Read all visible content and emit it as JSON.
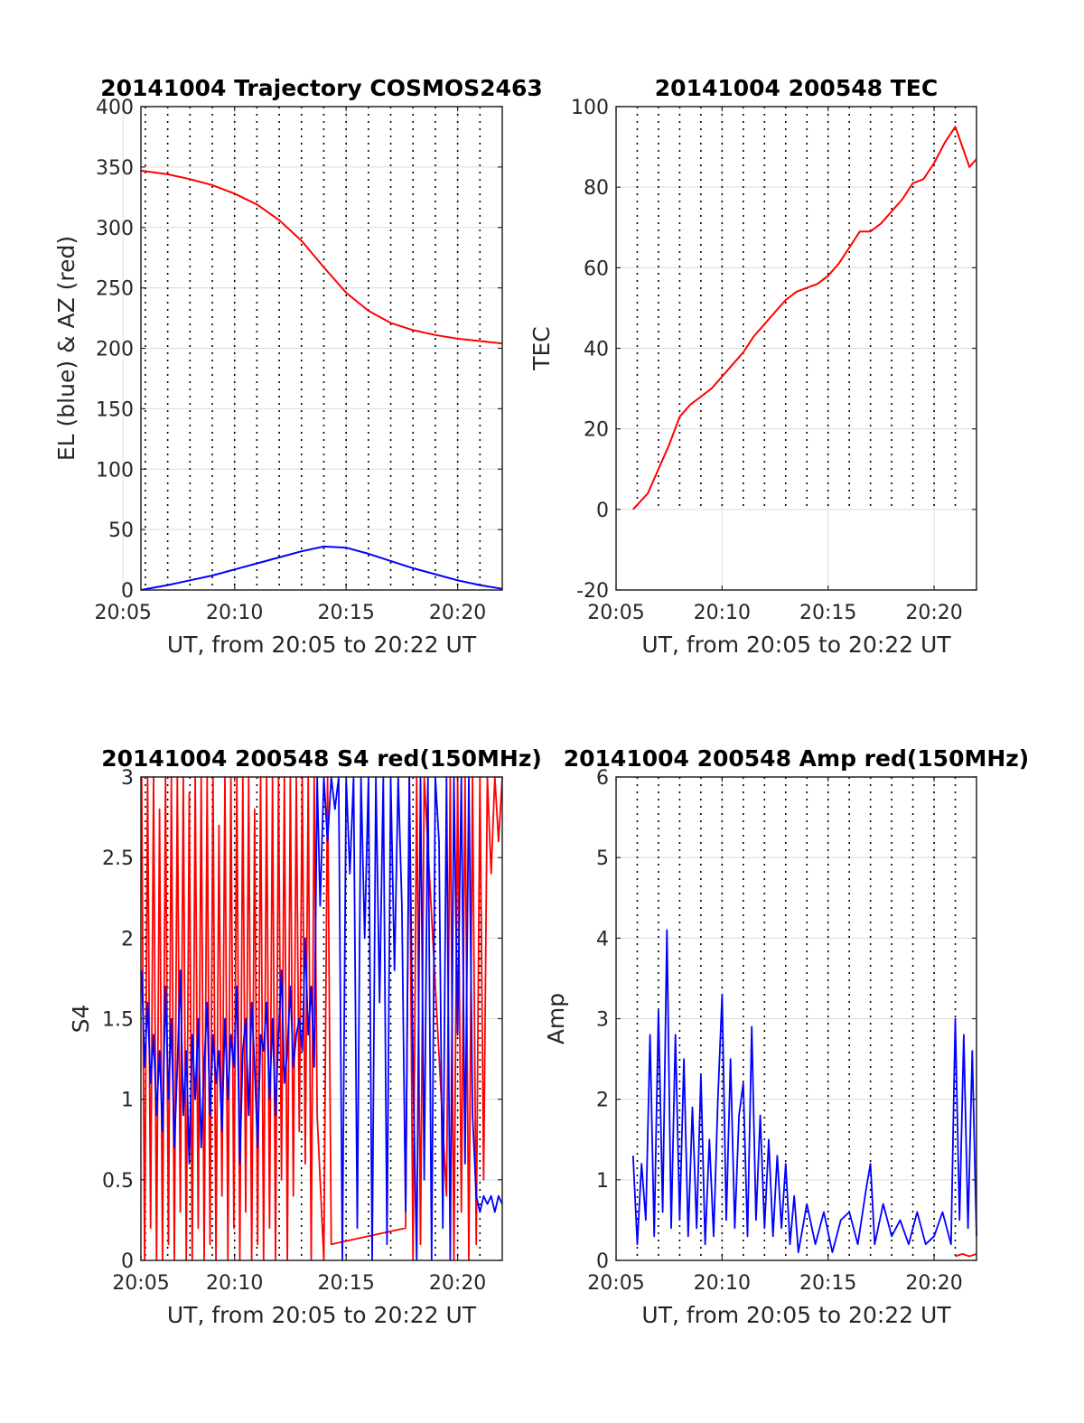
{
  "chart_data": [
    {
      "id": "traj",
      "type": "line",
      "title": "20141004 Trajectory COSMOS2463",
      "xlabel": "UT, from 20:05 to 20:22 UT",
      "ylabel": "EL (blue) & AZ (red)",
      "xlim": [
        "20:05:48",
        "20:22:00"
      ],
      "ylim": [
        0,
        400
      ],
      "yticks": [
        0,
        50,
        100,
        150,
        200,
        250,
        300,
        350,
        400
      ],
      "xticks": [
        "20:05",
        "20:10",
        "20:15",
        "20:20"
      ],
      "grid": true,
      "series": [
        {
          "color": "#ff0000",
          "x": [
            "20:05:48",
            "20:07:00",
            "20:08:00",
            "20:09:00",
            "20:10:00",
            "20:11:00",
            "20:12:00",
            "20:13:00",
            "20:14:00",
            "20:15:00",
            "20:16:00",
            "20:17:00",
            "20:18:00",
            "20:19:00",
            "20:20:00",
            "20:21:00",
            "20:22:00"
          ],
          "y": [
            347,
            344,
            340,
            335,
            328,
            319,
            306,
            289,
            267,
            246,
            231,
            221,
            215,
            211,
            208,
            206,
            204
          ]
        },
        {
          "color": "#0000ff",
          "x": [
            "20:05:48",
            "20:07:00",
            "20:08:00",
            "20:09:00",
            "20:10:00",
            "20:11:00",
            "20:12:00",
            "20:13:00",
            "20:14:00",
            "20:15:00",
            "20:16:00",
            "20:17:00",
            "20:18:00",
            "20:19:00",
            "20:20:00",
            "20:21:00",
            "20:22:00"
          ],
          "y": [
            0,
            4,
            8,
            12,
            17,
            22,
            27,
            32,
            36,
            35,
            30,
            24,
            18,
            13,
            8,
            4,
            1
          ]
        }
      ]
    },
    {
      "id": "tec",
      "type": "line",
      "title": "20141004 200548 TEC",
      "xlabel": "UT, from 20:05 to 20:22 UT",
      "ylabel": "TEC",
      "xlim": [
        "20:05:00",
        "20:22:00"
      ],
      "ylim": [
        -20,
        100
      ],
      "yticks": [
        -20,
        0,
        20,
        40,
        60,
        80,
        100
      ],
      "xticks": [
        "20:05",
        "20:10",
        "20:15",
        "20:20"
      ],
      "grid": true,
      "series": [
        {
          "color": "#ff0000",
          "x": [
            "20:05:48",
            "20:06:30",
            "20:07:00",
            "20:07:30",
            "20:08:00",
            "20:08:30",
            "20:09:00",
            "20:09:30",
            "20:10:00",
            "20:10:30",
            "20:11:00",
            "20:11:30",
            "20:12:00",
            "20:12:30",
            "20:13:00",
            "20:13:30",
            "20:14:00",
            "20:14:30",
            "20:15:00",
            "20:15:30",
            "20:16:00",
            "20:16:30",
            "20:17:00",
            "20:17:30",
            "20:18:00",
            "20:18:30",
            "20:19:00",
            "20:19:30",
            "20:20:00",
            "20:20:30",
            "20:21:00",
            "20:21:20",
            "20:21:40",
            "20:22:00"
          ],
          "y": [
            0,
            4,
            10,
            16,
            23,
            26,
            28,
            30,
            33,
            36,
            39,
            43,
            46,
            49,
            52,
            54,
            55,
            56,
            58,
            61,
            65,
            69,
            69,
            71,
            74,
            77,
            81,
            82,
            86,
            91,
            95,
            90,
            85,
            87
          ]
        }
      ]
    },
    {
      "id": "s4",
      "type": "line",
      "title": "20141004 200548 S4 red(150MHz)",
      "xlabel": "UT, from 20:05 to 20:22 UT",
      "ylabel": "S4",
      "xlim": [
        "20:05:48",
        "20:22:00"
      ],
      "ylim": [
        0,
        3
      ],
      "yticks": [
        0,
        0.5,
        1,
        1.5,
        2,
        2.5,
        3
      ],
      "ytick_labels": [
        "0",
        "0.5",
        "1",
        "1.5",
        "2",
        "2.5",
        "3"
      ],
      "xticks": [
        "20:10",
        "20:15",
        "20:20"
      ],
      "first_xtick_label": "20:05",
      "grid": true,
      "series": [
        {
          "color": "#ff0000",
          "x": [
            "20:05:50",
            "20:05:58",
            "20:06:06",
            "20:06:14",
            "20:06:22",
            "20:06:30",
            "20:06:38",
            "20:06:46",
            "20:06:54",
            "20:07:02",
            "20:07:10",
            "20:07:18",
            "20:07:26",
            "20:07:34",
            "20:07:42",
            "20:07:50",
            "20:07:58",
            "20:08:06",
            "20:08:14",
            "20:08:22",
            "20:08:30",
            "20:08:38",
            "20:08:46",
            "20:08:54",
            "20:09:02",
            "20:09:10",
            "20:09:18",
            "20:09:26",
            "20:09:34",
            "20:09:42",
            "20:09:50",
            "20:09:58",
            "20:10:06",
            "20:10:14",
            "20:10:22",
            "20:10:30",
            "20:10:38",
            "20:10:46",
            "20:10:54",
            "20:11:02",
            "20:11:10",
            "20:11:18",
            "20:11:26",
            "20:11:34",
            "20:11:42",
            "20:11:50",
            "20:11:58",
            "20:12:06",
            "20:12:14",
            "20:12:22",
            "20:12:30",
            "20:12:38",
            "20:12:46",
            "20:12:54",
            "20:13:02",
            "20:13:10",
            "20:13:18",
            "20:13:26",
            "20:13:34",
            "20:13:42",
            "20:14:00",
            "20:14:10",
            "20:14:20",
            "20:17:40",
            "20:17:50",
            "20:18:00",
            "20:18:10",
            "20:18:20",
            "20:18:30",
            "20:19:30",
            "20:19:40",
            "20:19:50",
            "20:20:00",
            "20:20:10",
            "20:20:20",
            "20:20:30",
            "20:20:40",
            "20:20:50",
            "20:21:00",
            "20:21:10",
            "20:21:20",
            "20:21:30",
            "20:21:40",
            "20:21:50",
            "20:22:00"
          ],
          "y": [
            3,
            0,
            3,
            0.2,
            3,
            0,
            2.8,
            0,
            3,
            0.1,
            3,
            0,
            3,
            0.3,
            3,
            0,
            2.9,
            0,
            3,
            0.2,
            3,
            0,
            3,
            0.1,
            3,
            0,
            2.7,
            0.4,
            3,
            0,
            3,
            0.2,
            3,
            0,
            3,
            0.3,
            3,
            0,
            2.8,
            0.1,
            3,
            0,
            3,
            0.2,
            3,
            0,
            3,
            0.5,
            3,
            0,
            3,
            0.4,
            3,
            0.8,
            3,
            0.6,
            3,
            0,
            3,
            0.9,
            0,
            3,
            0.1,
            0.2,
            3,
            0,
            3,
            0.1,
            3,
            0.4,
            3,
            0,
            3,
            0.3,
            3,
            0,
            3,
            0.1,
            3,
            0.5,
            3,
            2.4,
            3,
            2.6,
            3
          ]
        },
        {
          "color": "#0000ff",
          "x": [
            "20:05:50",
            "20:05:58",
            "20:06:06",
            "20:06:14",
            "20:06:22",
            "20:06:30",
            "20:06:38",
            "20:06:46",
            "20:06:54",
            "20:07:02",
            "20:07:10",
            "20:07:18",
            "20:07:26",
            "20:07:34",
            "20:07:42",
            "20:07:50",
            "20:07:58",
            "20:08:06",
            "20:08:14",
            "20:08:22",
            "20:08:30",
            "20:08:38",
            "20:08:46",
            "20:08:54",
            "20:09:02",
            "20:09:10",
            "20:09:18",
            "20:09:26",
            "20:09:34",
            "20:09:42",
            "20:09:50",
            "20:09:58",
            "20:10:06",
            "20:10:14",
            "20:10:22",
            "20:10:30",
            "20:10:38",
            "20:10:46",
            "20:10:54",
            "20:11:02",
            "20:11:10",
            "20:11:18",
            "20:11:26",
            "20:11:34",
            "20:11:42",
            "20:11:50",
            "20:11:58",
            "20:12:06",
            "20:12:14",
            "20:12:22",
            "20:12:30",
            "20:12:38",
            "20:12:46",
            "20:12:54",
            "20:13:02",
            "20:13:10",
            "20:13:18",
            "20:13:26",
            "20:13:34",
            "20:13:42",
            "20:13:50",
            "20:14:00",
            "20:14:10",
            "20:14:20",
            "20:14:30",
            "20:14:40",
            "20:14:50",
            "20:15:00",
            "20:15:10",
            "20:15:20",
            "20:15:30",
            "20:15:40",
            "20:15:50",
            "20:16:00",
            "20:16:10",
            "20:16:20",
            "20:16:30",
            "20:16:40",
            "20:16:50",
            "20:17:00",
            "20:17:10",
            "20:17:20",
            "20:17:30",
            "20:17:40",
            "20:17:50",
            "20:18:00",
            "20:18:10",
            "20:18:20",
            "20:18:30",
            "20:18:40",
            "20:18:50",
            "20:19:00",
            "20:19:10",
            "20:19:20",
            "20:19:30",
            "20:19:40",
            "20:19:50",
            "20:20:00",
            "20:20:10",
            "20:20:20",
            "20:20:30",
            "20:20:40",
            "20:20:50",
            "20:21:00",
            "20:21:10",
            "20:21:20",
            "20:21:30",
            "20:21:40",
            "20:21:50",
            "20:22:00"
          ],
          "y": [
            1.8,
            1.2,
            1.6,
            1.1,
            1.4,
            0.9,
            1.3,
            0.8,
            1.7,
            1.0,
            1.5,
            0.7,
            1.2,
            1.8,
            0.9,
            1.3,
            0.6,
            1.4,
            1.0,
            1.5,
            0.7,
            1.2,
            1.6,
            0.9,
            1.4,
            1.1,
            1.3,
            0.8,
            1.5,
            1.0,
            1.4,
            1.2,
            1.7,
            0.6,
            1.3,
            1.5,
            0.9,
            1.6,
            1.2,
            0.7,
            1.4,
            1.3,
            1.6,
            1.0,
            1.5,
            0.9,
            1.4,
            1.8,
            1.1,
            1.3,
            1.7,
            1.2,
            1.4,
            1.5,
            1.3,
            2.0,
            1.4,
            1.7,
            1.2,
            3,
            2.2,
            3,
            2.6,
            3,
            2.8,
            3,
            0,
            3,
            2.4,
            3,
            0.2,
            3,
            2.0,
            3,
            0,
            3,
            1.6,
            3,
            0.1,
            3,
            1.8,
            3,
            2.2,
            0.3,
            3,
            1.2,
            0,
            3,
            0.5,
            3,
            0,
            3,
            2.6,
            0.2,
            3,
            0,
            3,
            1.4,
            3,
            0.6,
            3,
            0.9,
            0.4,
            0.3,
            0.4,
            0.35,
            0.4,
            0.3,
            0.4,
            0.35
          ]
        }
      ]
    },
    {
      "id": "amp",
      "type": "line",
      "title": "20141004 200548 Amp red(150MHz)",
      "xlabel": "UT, from 20:05 to 20:22 UT",
      "ylabel": "Amp",
      "xlim": [
        "20:05:00",
        "20:22:00"
      ],
      "ylim": [
        0,
        6
      ],
      "yticks": [
        0,
        1,
        2,
        3,
        4,
        5,
        6
      ],
      "xticks": [
        "20:05",
        "20:10",
        "20:15",
        "20:20"
      ],
      "grid": true,
      "series": [
        {
          "color": "#0000ff",
          "x": [
            "20:05:48",
            "20:06:00",
            "20:06:12",
            "20:06:24",
            "20:06:36",
            "20:06:48",
            "20:07:00",
            "20:07:12",
            "20:07:24",
            "20:07:36",
            "20:07:48",
            "20:08:00",
            "20:08:12",
            "20:08:24",
            "20:08:36",
            "20:08:48",
            "20:09:00",
            "20:09:12",
            "20:09:24",
            "20:09:36",
            "20:09:48",
            "20:10:00",
            "20:10:12",
            "20:10:24",
            "20:10:36",
            "20:10:48",
            "20:11:00",
            "20:11:12",
            "20:11:24",
            "20:11:36",
            "20:11:48",
            "20:12:00",
            "20:12:12",
            "20:12:24",
            "20:12:36",
            "20:12:48",
            "20:13:00",
            "20:13:12",
            "20:13:24",
            "20:13:36",
            "20:14:00",
            "20:14:24",
            "20:14:48",
            "20:15:12",
            "20:15:36",
            "20:16:00",
            "20:16:24",
            "20:16:48",
            "20:17:00",
            "20:17:12",
            "20:17:36",
            "20:18:00",
            "20:18:24",
            "20:18:48",
            "20:19:12",
            "20:19:36",
            "20:20:00",
            "20:20:24",
            "20:20:48",
            "20:21:00",
            "20:21:12",
            "20:21:24",
            "20:21:36",
            "20:21:48",
            "20:22:00"
          ],
          "y": [
            1.3,
            0.2,
            1.2,
            0.5,
            2.8,
            0.3,
            3.1,
            0.6,
            4.1,
            0.4,
            2.8,
            0.5,
            2.5,
            0.3,
            1.9,
            0.4,
            2.3,
            0.2,
            1.5,
            0.3,
            2.0,
            3.3,
            0.5,
            2.5,
            0.4,
            1.8,
            2.2,
            0.3,
            2.9,
            0.5,
            1.8,
            0.4,
            1.5,
            0.3,
            1.3,
            0.4,
            1.2,
            0.2,
            0.8,
            0.1,
            0.7,
            0.2,
            0.6,
            0.1,
            0.5,
            0.6,
            0.2,
            0.9,
            1.2,
            0.2,
            0.7,
            0.3,
            0.5,
            0.2,
            0.6,
            0.2,
            0.3,
            0.6,
            0.2,
            3.0,
            0.5,
            2.8,
            0.4,
            2.6,
            0.3
          ]
        },
        {
          "color": "#ff0000",
          "x": [
            "20:21:00",
            "20:21:20",
            "20:21:40",
            "20:22:00"
          ],
          "y": [
            0.05,
            0.08,
            0.05,
            0.08
          ]
        }
      ]
    }
  ]
}
